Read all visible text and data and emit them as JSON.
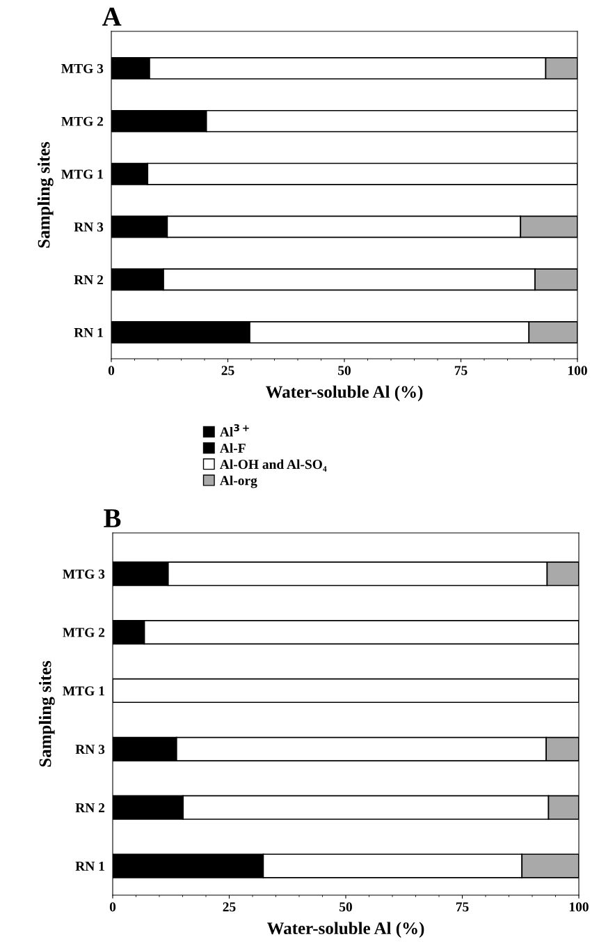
{
  "chart_data": [
    {
      "type": "bar",
      "title": "A",
      "orientation": "horizontal",
      "stacked": true,
      "xlabel": "Water-soluble Al (%)",
      "ylabel": "Sampling sites",
      "categories": [
        "MTG 3",
        "MTG 2",
        "MTG 1",
        "RN 3",
        "RN 2",
        "RN 1"
      ],
      "series": [
        {
          "name": "Al$^{3+}$",
          "color": "#000000",
          "values": [
            8.2,
            20.4,
            7.8,
            12.0,
            11.2,
            29.7
          ]
        },
        {
          "name": "Al-F",
          "color": "#000000",
          "values": [
            null,
            null,
            null,
            null,
            null,
            null
          ]
        },
        {
          "name": "Al-OH and Al-SO₄",
          "color": "#ffffff",
          "values": [
            85.0,
            79.6,
            92.2,
            75.8,
            79.7,
            59.9
          ]
        },
        {
          "name": "Al-org",
          "color": "#a9a9a9",
          "values": [
            6.8,
            0,
            0,
            12.2,
            9.1,
            10.4
          ]
        }
      ],
      "xlim": [
        0,
        100
      ],
      "xticks": [
        0,
        25,
        50,
        75,
        100
      ],
      "legend": "bottom",
      "grid": false
    },
    {
      "type": "bar",
      "title": "B",
      "orientation": "horizontal",
      "stacked": true,
      "xlabel": "Water-soluble Al (%)",
      "ylabel": "Sampling sites",
      "categories": [
        "MTG 3",
        "MTG 2",
        "MTG 1",
        "RN 3",
        "RN 2",
        "RN 1"
      ],
      "series": [
        {
          "color": "#000000",
          "values": [
            11.9,
            6.8,
            0,
            13.7,
            15.1,
            32.3
          ]
        },
        {
          "color": "#ffffff",
          "values": [
            81.3,
            93.2,
            100,
            79.3,
            78.4,
            55.5
          ]
        },
        {
          "color": "#a9a9a9",
          "values": [
            6.8,
            0,
            0,
            7.0,
            6.5,
            12.2
          ]
        }
      ],
      "xlim": [
        0,
        100
      ],
      "xticks": [
        0,
        25,
        50,
        75,
        100
      ],
      "legend": false,
      "grid": false
    }
  ]
}
